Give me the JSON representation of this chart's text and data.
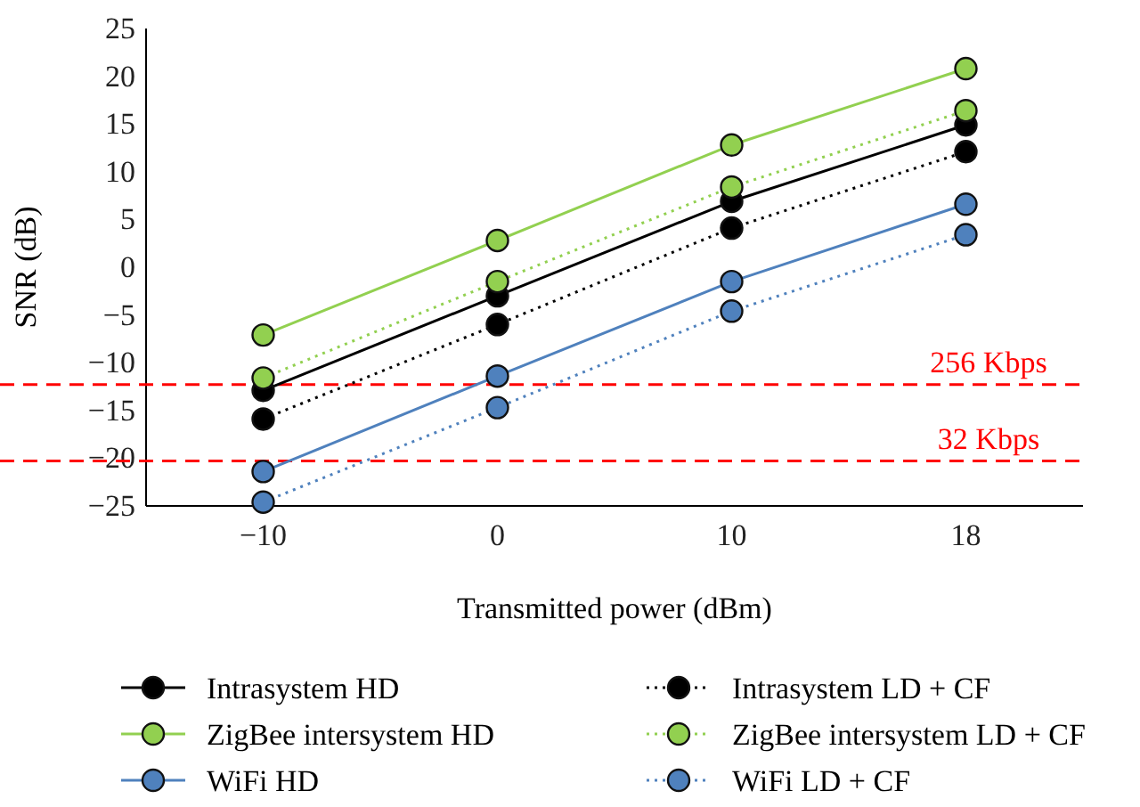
{
  "chart_data": {
    "type": "line",
    "xlabel": "Transmitted power (dBm)",
    "ylabel": "SNR (dB)",
    "categories": [
      "−10",
      "0",
      "10",
      "18"
    ],
    "ylim": [
      -25,
      25
    ],
    "yticks": [
      25,
      20,
      15,
      10,
      5,
      0,
      {
        "value": -5,
        "label": "−5"
      },
      {
        "value": -10,
        "label": "−10"
      },
      {
        "value": -15,
        "label": "−15"
      },
      {
        "value": -20,
        "label": "−20"
      },
      {
        "value": -25,
        "label": "−25"
      }
    ],
    "marker": "circle",
    "legend": "bottom",
    "grid": false,
    "series": [
      {
        "name": "Intrasystem HD",
        "color": "#000000",
        "line_style": "solid",
        "values": [
          -12.9,
          -3,
          6.9,
          14.9
        ]
      },
      {
        "name": "ZigBee intersystem HD",
        "color": "#92d050",
        "line_style": "solid",
        "values": [
          -7.1,
          2.8,
          12.8,
          20.8
        ]
      },
      {
        "name": "WiFi HD",
        "color": "#4f81bd",
        "line_style": "solid",
        "values": [
          -21.4,
          -11.4,
          -1.5,
          6.6
        ]
      },
      {
        "name": "Intrasystem LD + CF",
        "color": "#000000",
        "line_style": "dotted",
        "values": [
          -15.9,
          -6,
          4.1,
          12.1
        ]
      },
      {
        "name": "ZigBee intersystem LD + CF",
        "color": "#92d050",
        "line_style": "dotted",
        "values": [
          -11.6,
          -1.5,
          8.4,
          16.4
        ]
      },
      {
        "name": "WiFi LD + CF",
        "color": "#4f81bd",
        "line_style": "dotted",
        "values": [
          -24.6,
          -14.7,
          -4.6,
          3.4
        ]
      }
    ],
    "ref_lines": [
      {
        "axis": "y",
        "value": -12.3,
        "label": "256 Kbps",
        "color": "#ff0000",
        "line_style": "dashed"
      },
      {
        "axis": "y",
        "value": -20.3,
        "label": "32 Kbps",
        "color": "#ff0000",
        "line_style": "dashed"
      }
    ]
  }
}
